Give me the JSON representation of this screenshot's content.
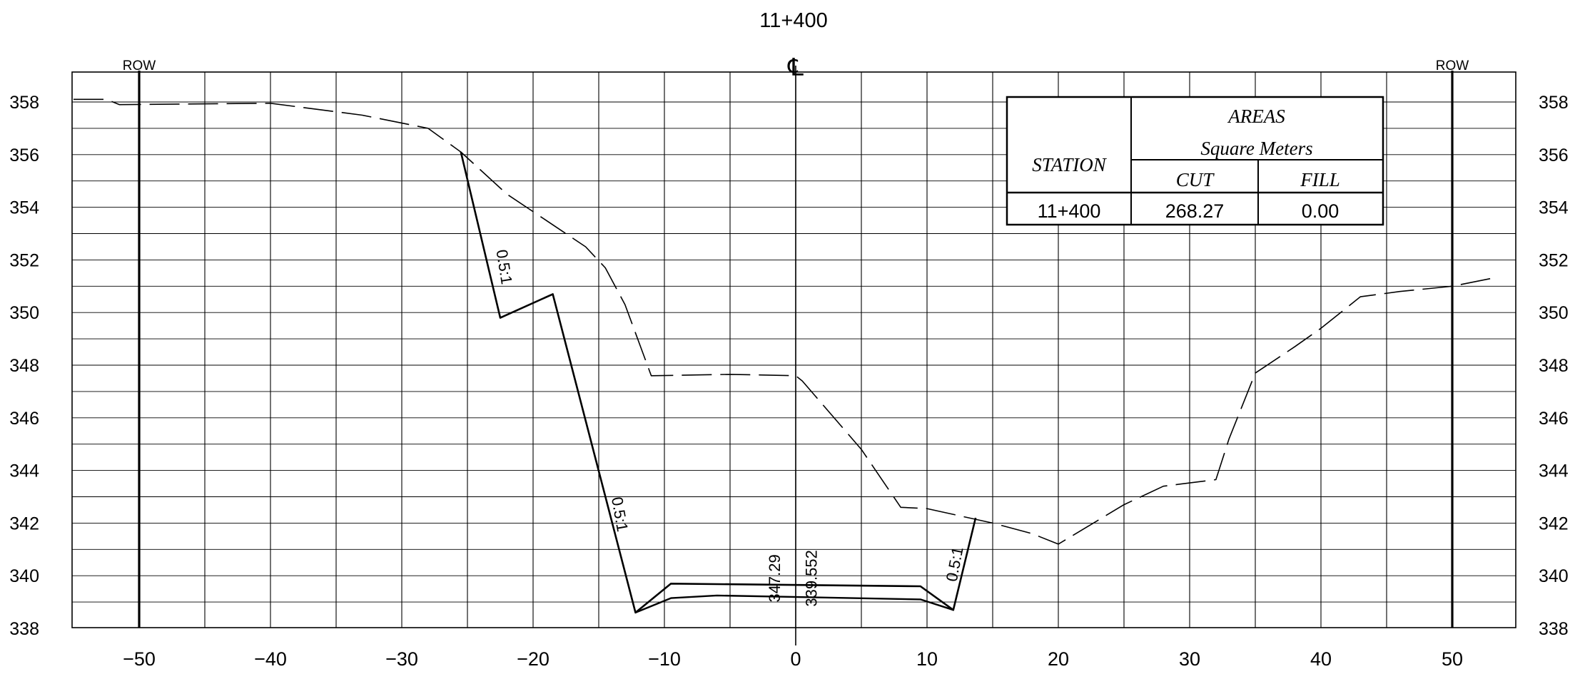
{
  "chart_data": {
    "type": "line",
    "title": "11+400",
    "centerline_symbol": "℄",
    "xlabel": "",
    "ylabel": "",
    "xlim": [
      -55,
      55
    ],
    "ylim": [
      338,
      359
    ],
    "x_ticks": [
      -50,
      -40,
      -30,
      -20,
      -10,
      0,
      10,
      20,
      30,
      40,
      50
    ],
    "y_ticks": [
      358,
      356,
      354,
      352,
      350,
      348,
      346,
      344,
      342,
      340,
      338
    ],
    "grid": true,
    "row_markers": [
      {
        "x": -50,
        "label": "ROW"
      },
      {
        "x": 50,
        "label": "ROW"
      }
    ],
    "series": [
      {
        "style": "dashed-ground",
        "points": [
          [
            -55,
            358.1
          ],
          [
            -52.5,
            358.1
          ],
          [
            -51.5,
            357.9
          ],
          [
            -40,
            357.95
          ],
          [
            -33,
            357.5
          ],
          [
            -28,
            357.0
          ],
          [
            -25.5,
            356.1
          ],
          [
            -22,
            354.5
          ],
          [
            -16,
            352.5
          ],
          [
            -14.5,
            351.7
          ],
          [
            -13,
            350.3
          ],
          [
            -11,
            347.6
          ],
          [
            -5,
            347.65
          ],
          [
            0,
            347.6
          ],
          [
            0.5,
            347.4
          ],
          [
            5,
            344.8
          ],
          [
            8,
            342.6
          ],
          [
            10,
            342.55
          ],
          [
            15,
            342.0
          ],
          [
            18,
            341.6
          ],
          [
            20,
            341.2
          ],
          [
            22,
            341.8
          ],
          [
            25,
            342.7
          ],
          [
            28,
            343.4
          ],
          [
            32,
            343.65
          ],
          [
            33,
            345.2
          ],
          [
            35,
            347.7
          ],
          [
            38,
            348.7
          ],
          [
            40,
            349.4
          ],
          [
            43,
            350.6
          ],
          [
            46,
            350.8
          ],
          [
            50,
            351.0
          ],
          [
            53.5,
            351.35
          ]
        ]
      },
      {
        "style": "solid-design",
        "points": [
          [
            -25.5,
            356.1
          ],
          [
            -22.5,
            349.8
          ],
          [
            -18.5,
            350.7
          ],
          [
            -12.2,
            338.6
          ],
          [
            -9.5,
            339.7
          ],
          [
            9.5,
            339.6
          ],
          [
            12,
            338.7
          ],
          [
            13.7,
            342.2
          ]
        ]
      },
      {
        "style": "solid-subgrade",
        "points": [
          [
            -12.2,
            338.6
          ],
          [
            -9.5,
            339.15
          ],
          [
            -6,
            339.25
          ],
          [
            9.5,
            339.1
          ],
          [
            12,
            338.7
          ]
        ]
      }
    ],
    "annotations": [
      {
        "text": "0.5:1",
        "x": -22.6,
        "y": 351.7,
        "rotate": 81
      },
      {
        "text": "0.5:1",
        "x": -13.8,
        "y": 342.3,
        "rotate": 80
      },
      {
        "text": "0.5:1",
        "x": 12.5,
        "y": 340.4,
        "rotate": -79
      },
      {
        "text": "347.29",
        "x": -1.2,
        "y": 339.9,
        "rotate": -90
      },
      {
        "text": "339.552",
        "x": 1.6,
        "y": 339.9,
        "rotate": -90
      }
    ],
    "table": {
      "header_station": "STATION",
      "header_areas": "AREAS",
      "header_units": "Square Meters",
      "header_cut": "CUT",
      "header_fill": "FILL",
      "row": {
        "station": "11+400",
        "cut": "268.27",
        "fill": "0.00"
      }
    }
  }
}
